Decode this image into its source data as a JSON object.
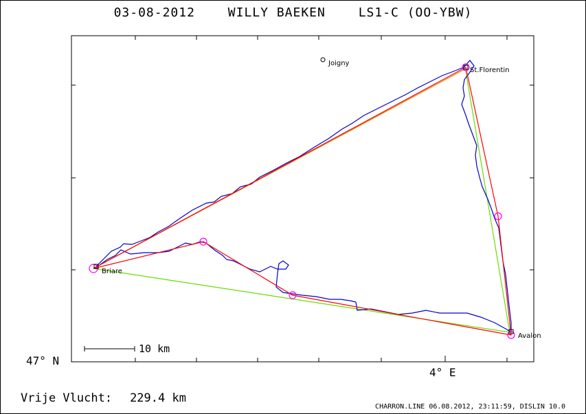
{
  "header": {
    "date": "03-08-2012",
    "pilot": "WILLY BAEKEN",
    "glider": "LS1-C (OO-YBW)"
  },
  "axes": {
    "lat_label": "47° N",
    "lon_label": "4° E"
  },
  "places": [
    {
      "name": "Joigny",
      "kind": "town"
    },
    {
      "name": "St.Florentin",
      "kind": "waypoint"
    },
    {
      "name": "Briare",
      "kind": "waypoint"
    },
    {
      "name": "Avalon",
      "kind": "waypoint"
    }
  ],
  "scale_bar": {
    "label": "10 km"
  },
  "summary": {
    "label": "Vrije Vlucht:",
    "distance": "229.4 km"
  },
  "footer": {
    "text": "CHARRON.LINE 06.08.2012, 23:11:59, DISLIN 10.0"
  },
  "colors": {
    "track": "#0000cc",
    "task_line": "#ff0000",
    "declared_line": "#66dd00",
    "course_line": "#e08a00",
    "turnpoint_circle": "#ff00ff",
    "frame": "#000000"
  }
}
